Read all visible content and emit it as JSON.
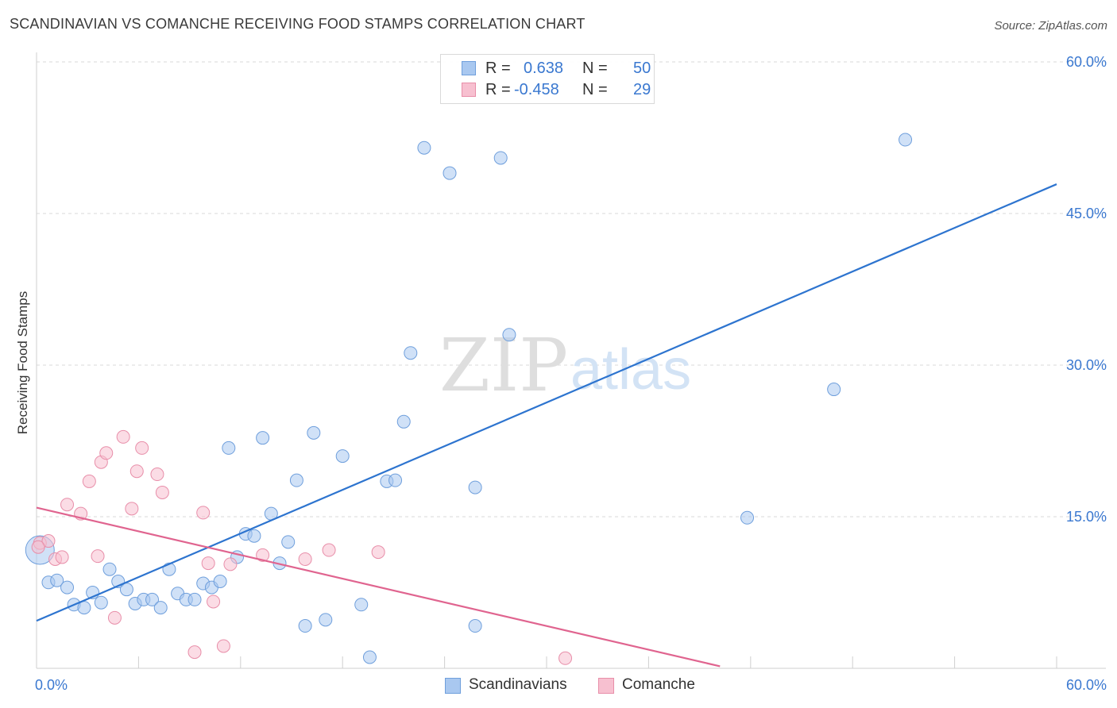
{
  "title": "SCANDINAVIAN VS COMANCHE RECEIVING FOOD STAMPS CORRELATION CHART",
  "source": "Source: ZipAtlas.com",
  "watermark": {
    "zip": "ZIP",
    "atlas": "atlas"
  },
  "legend": {
    "r_label": "R =",
    "n_label": "N =",
    "rows": [
      {
        "r": "0.638",
        "n": "50",
        "color": "#a9c8f0",
        "border": "#6f9fdc"
      },
      {
        "r": "-0.458",
        "n": "29",
        "color": "#f7c0d0",
        "border": "#e88ea9"
      }
    ]
  },
  "bottom_legend": [
    "Scandinavians",
    "Comanche"
  ],
  "chart_data": {
    "type": "scatter",
    "title": "SCANDINAVIAN VS COMANCHE RECEIVING FOOD STAMPS CORRELATION CHART",
    "xlabel": "",
    "ylabel": "Receiving Food Stamps",
    "xlim": [
      0,
      60
    ],
    "ylim": [
      0,
      60
    ],
    "x_tick_labels": [
      "0.0%",
      "60.0%"
    ],
    "y_tick_labels": [
      "15.0%",
      "30.0%",
      "45.0%",
      "60.0%"
    ],
    "y_ticks": [
      15,
      30,
      45,
      60
    ],
    "grid": true,
    "colors": {
      "scandinavians_fill": "#a9c8f0",
      "scandinavians_stroke": "#6f9fdc",
      "scandinavians_line": "#2d74cf",
      "comanche_fill": "#f7c0d0",
      "comanche_stroke": "#e88ea9",
      "comanche_line": "#e0648f",
      "tick_label": "#3a78d0"
    },
    "series": [
      {
        "name": "Scandinavians",
        "points": [
          [
            0.2,
            11.7
          ],
          [
            0.7,
            8.5
          ],
          [
            1.2,
            8.7
          ],
          [
            1.8,
            8.0
          ],
          [
            2.2,
            6.3
          ],
          [
            2.8,
            6.0
          ],
          [
            3.3,
            7.5
          ],
          [
            3.8,
            6.5
          ],
          [
            4.3,
            9.8
          ],
          [
            4.8,
            8.6
          ],
          [
            5.3,
            7.8
          ],
          [
            5.8,
            6.4
          ],
          [
            6.3,
            6.8
          ],
          [
            6.8,
            6.8
          ],
          [
            7.3,
            6.0
          ],
          [
            7.8,
            9.8
          ],
          [
            8.3,
            7.4
          ],
          [
            8.8,
            6.8
          ],
          [
            9.3,
            6.8
          ],
          [
            9.8,
            8.4
          ],
          [
            10.3,
            8.0
          ],
          [
            10.8,
            8.6
          ],
          [
            11.3,
            21.8
          ],
          [
            11.8,
            11.0
          ],
          [
            12.3,
            13.3
          ],
          [
            12.8,
            13.1
          ],
          [
            13.3,
            22.8
          ],
          [
            13.8,
            15.3
          ],
          [
            14.3,
            10.4
          ],
          [
            14.8,
            12.5
          ],
          [
            15.3,
            18.6
          ],
          [
            15.8,
            4.2
          ],
          [
            16.3,
            23.3
          ],
          [
            17.0,
            4.8
          ],
          [
            18.0,
            21.0
          ],
          [
            19.1,
            6.3
          ],
          [
            19.6,
            1.1
          ],
          [
            20.6,
            18.5
          ],
          [
            21.1,
            18.6
          ],
          [
            21.6,
            24.4
          ],
          [
            22.0,
            31.2
          ],
          [
            22.8,
            51.5
          ],
          [
            24.3,
            49.0
          ],
          [
            25.8,
            4.2
          ],
          [
            25.8,
            17.9
          ],
          [
            27.3,
            50.5
          ],
          [
            27.8,
            33.0
          ],
          [
            41.8,
            14.9
          ],
          [
            46.9,
            27.6
          ],
          [
            51.1,
            52.3
          ]
        ]
      },
      {
        "name": "Comanche",
        "points": [
          [
            0.2,
            12.4
          ],
          [
            0.7,
            12.6
          ],
          [
            1.1,
            10.8
          ],
          [
            1.5,
            11.0
          ],
          [
            1.8,
            16.2
          ],
          [
            2.6,
            15.3
          ],
          [
            3.1,
            18.5
          ],
          [
            3.6,
            11.1
          ],
          [
            3.8,
            20.4
          ],
          [
            4.1,
            21.3
          ],
          [
            4.6,
            5.0
          ],
          [
            5.1,
            22.9
          ],
          [
            5.6,
            15.8
          ],
          [
            5.9,
            19.5
          ],
          [
            6.2,
            21.8
          ],
          [
            7.1,
            19.2
          ],
          [
            7.4,
            17.4
          ],
          [
            9.3,
            1.6
          ],
          [
            9.8,
            15.4
          ],
          [
            10.1,
            10.4
          ],
          [
            10.4,
            6.6
          ],
          [
            11.0,
            2.2
          ],
          [
            11.4,
            10.3
          ],
          [
            13.3,
            11.2
          ],
          [
            15.8,
            10.8
          ],
          [
            17.2,
            11.7
          ],
          [
            20.1,
            11.5
          ],
          [
            31.1,
            1.0
          ],
          [
            0.1,
            12.0
          ]
        ]
      }
    ],
    "trendlines": [
      {
        "name": "Scandinavians",
        "x": [
          0,
          60
        ],
        "y": [
          4.7,
          47.9
        ]
      },
      {
        "name": "Comanche",
        "x": [
          0,
          40.2
        ],
        "y": [
          15.9,
          0.2
        ]
      }
    ]
  }
}
